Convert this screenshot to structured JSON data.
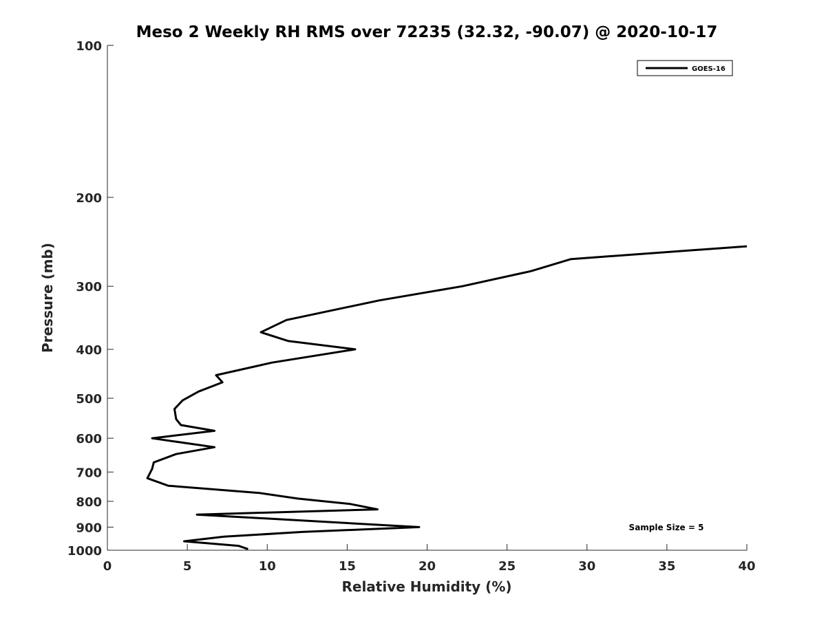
{
  "chart_data": {
    "type": "line",
    "title": "Meso 2 Weekly RH RMS over 72235 (32.32, -90.07) @ 2020-10-17",
    "xlabel": "Relative Humidity (%)",
    "ylabel": "Pressure (mb)",
    "xlim": [
      0,
      40
    ],
    "ylim": [
      100,
      1000
    ],
    "y_scale": "log",
    "y_reversed": true,
    "x_ticks": [
      0,
      5,
      10,
      15,
      20,
      25,
      30,
      35,
      40
    ],
    "y_ticks": [
      100,
      200,
      300,
      400,
      500,
      600,
      700,
      800,
      900,
      1000
    ],
    "grid": false,
    "legend_position": "top-right",
    "annotation": "Sample Size = 5",
    "series": [
      {
        "name": "GOES-16",
        "color": "#000000",
        "points": [
          {
            "x": 40.0,
            "y": 250
          },
          {
            "x": 29.0,
            "y": 265
          },
          {
            "x": 26.5,
            "y": 280
          },
          {
            "x": 22.2,
            "y": 300
          },
          {
            "x": 17.0,
            "y": 320
          },
          {
            "x": 11.2,
            "y": 350
          },
          {
            "x": 9.6,
            "y": 370
          },
          {
            "x": 11.3,
            "y": 385
          },
          {
            "x": 15.5,
            "y": 400
          },
          {
            "x": 10.3,
            "y": 425
          },
          {
            "x": 6.8,
            "y": 450
          },
          {
            "x": 7.2,
            "y": 465
          },
          {
            "x": 5.7,
            "y": 485
          },
          {
            "x": 4.7,
            "y": 505
          },
          {
            "x": 4.2,
            "y": 525
          },
          {
            "x": 4.3,
            "y": 550
          },
          {
            "x": 4.6,
            "y": 565
          },
          {
            "x": 6.7,
            "y": 580
          },
          {
            "x": 2.8,
            "y": 600
          },
          {
            "x": 6.7,
            "y": 625
          },
          {
            "x": 4.3,
            "y": 645
          },
          {
            "x": 2.9,
            "y": 670
          },
          {
            "x": 2.8,
            "y": 690
          },
          {
            "x": 2.5,
            "y": 720
          },
          {
            "x": 3.8,
            "y": 745
          },
          {
            "x": 9.5,
            "y": 770
          },
          {
            "x": 11.9,
            "y": 790
          },
          {
            "x": 15.2,
            "y": 810
          },
          {
            "x": 16.9,
            "y": 830
          },
          {
            "x": 5.6,
            "y": 850
          },
          {
            "x": 19.5,
            "y": 900
          },
          {
            "x": 12.2,
            "y": 920
          },
          {
            "x": 7.3,
            "y": 940
          },
          {
            "x": 4.8,
            "y": 960
          },
          {
            "x": 8.2,
            "y": 980
          },
          {
            "x": 8.8,
            "y": 995
          }
        ]
      }
    ]
  }
}
